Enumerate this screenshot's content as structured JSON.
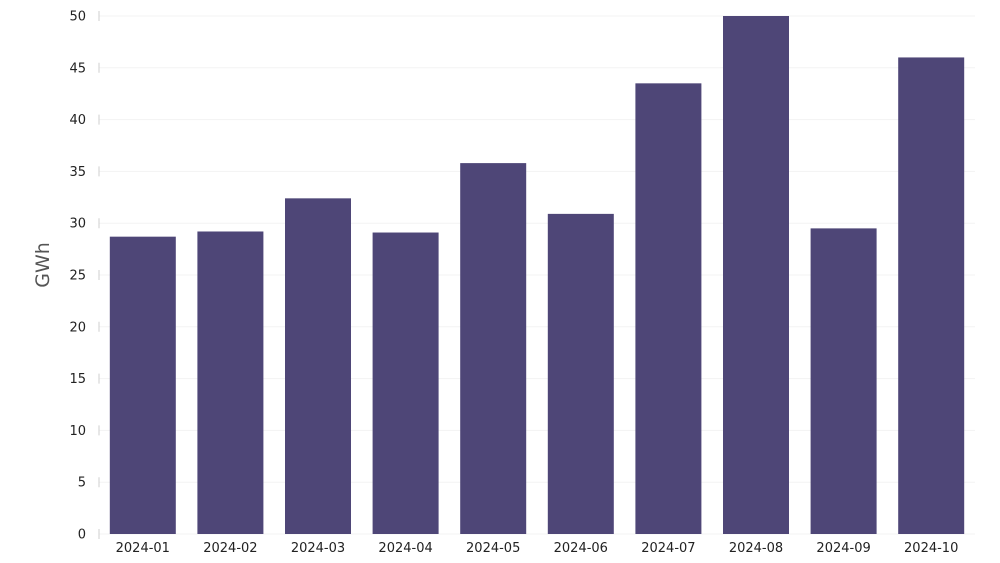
{
  "chart_data": {
    "type": "bar",
    "ylabel": "GWh",
    "xlabel": "",
    "ylim": [
      0,
      50
    ],
    "yticks": [
      0,
      5,
      10,
      15,
      20,
      25,
      30,
      35,
      40,
      45,
      50
    ],
    "grid": true,
    "bar_color": "#4e4677",
    "categories": [
      "2024-01",
      "2024-02",
      "2024-03",
      "2024-04",
      "2024-05",
      "2024-06",
      "2024-07",
      "2024-08",
      "2024-09",
      "2024-10"
    ],
    "values": [
      28.7,
      29.2,
      32.4,
      29.1,
      35.8,
      30.9,
      43.5,
      50.0,
      29.5,
      46.0
    ]
  }
}
